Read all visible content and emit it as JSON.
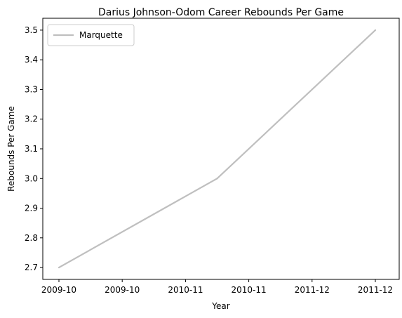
{
  "chart_data": {
    "type": "line",
    "title": "Darius Johnson-Odom Career Rebounds Per Game",
    "xlabel": "Year",
    "ylabel": "Rebounds Per Game",
    "x_tick_labels": [
      "2009-10",
      "2009-10",
      "2010-11",
      "2010-11",
      "2011-12",
      "2011-12"
    ],
    "y_ticks": [
      2.7,
      2.8,
      2.9,
      3.0,
      3.1,
      3.2,
      3.3,
      3.4,
      3.5
    ],
    "ylim": [
      2.66,
      3.54
    ],
    "legend_position": "top-left",
    "grid": false,
    "series": [
      {
        "name": "Marquette",
        "color": "#bfbfbf",
        "points": [
          {
            "season": "2009-10",
            "value": 2.7
          },
          {
            "season": "2010-11",
            "value": 3.0
          },
          {
            "season": "2011-12",
            "value": 3.5
          }
        ]
      }
    ]
  }
}
